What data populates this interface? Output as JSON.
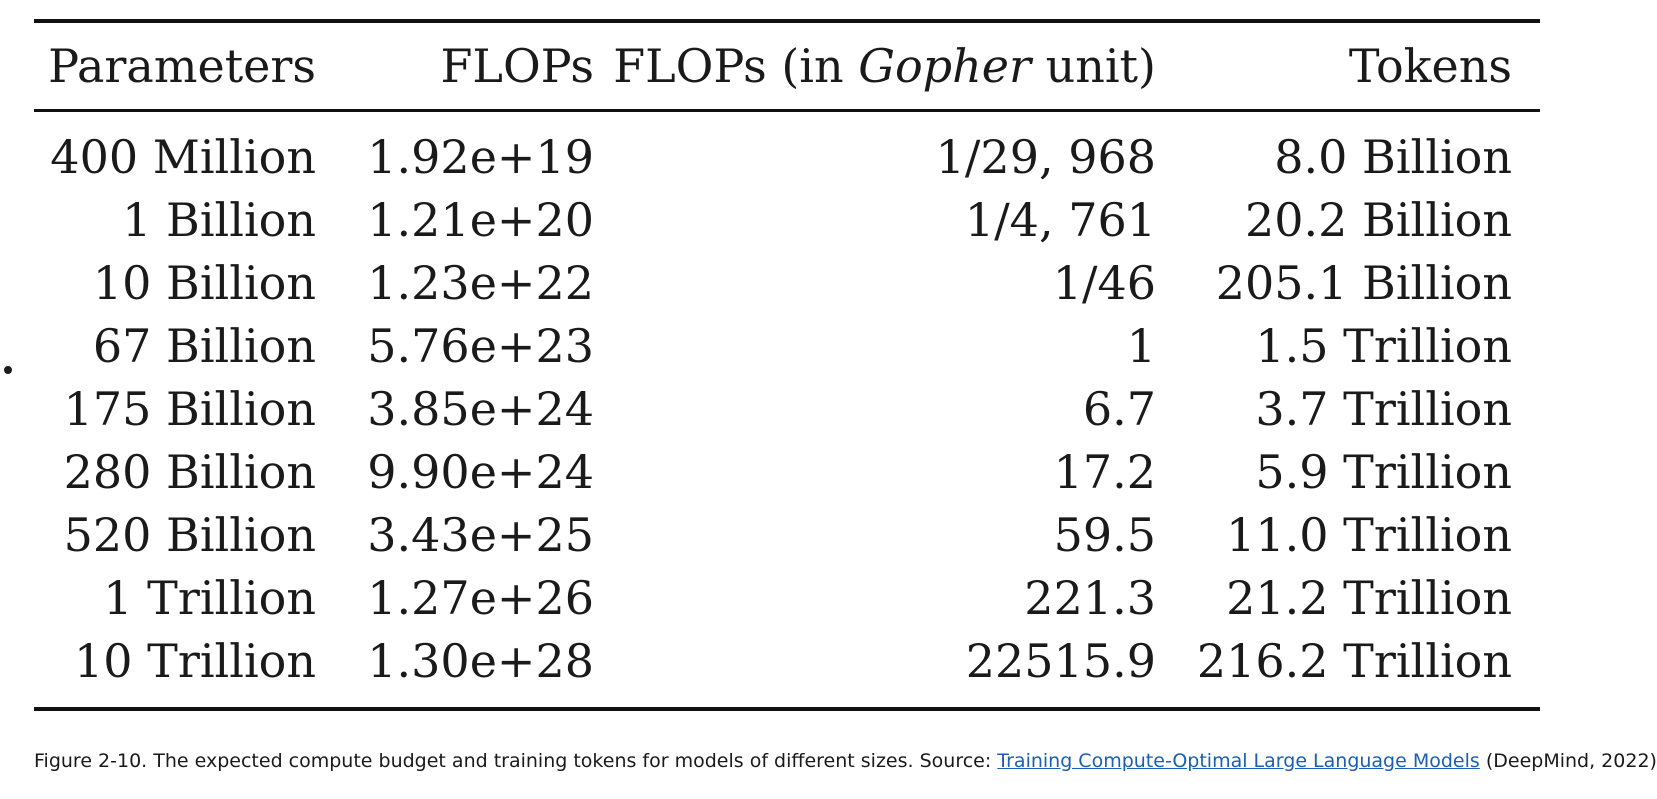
{
  "table": {
    "headers": {
      "parameters": "Parameters",
      "flops": "FLOPs",
      "flops_gopher_prefix": "FLOPs (in ",
      "flops_gopher_italic": "Gopher",
      "flops_gopher_suffix": " unit)",
      "tokens": "Tokens"
    },
    "rows": [
      {
        "parameters": "400 Million",
        "flops": "1.92e+19",
        "gopher": "1/29, 968",
        "tokens": "8.0 Billion"
      },
      {
        "parameters": "1 Billion",
        "flops": "1.21e+20",
        "gopher": "1/4, 761",
        "tokens": "20.2 Billion"
      },
      {
        "parameters": "10 Billion",
        "flops": "1.23e+22",
        "gopher": "1/46",
        "tokens": "205.1 Billion"
      },
      {
        "parameters": "67 Billion",
        "flops": "5.76e+23",
        "gopher": "1",
        "tokens": "1.5 Trillion"
      },
      {
        "parameters": "175 Billion",
        "flops": "3.85e+24",
        "gopher": "6.7",
        "tokens": "3.7 Trillion"
      },
      {
        "parameters": "280 Billion",
        "flops": "9.90e+24",
        "gopher": "17.2",
        "tokens": "5.9 Trillion"
      },
      {
        "parameters": "520 Billion",
        "flops": "3.43e+25",
        "gopher": "59.5",
        "tokens": "11.0 Trillion"
      },
      {
        "parameters": "1 Trillion",
        "flops": "1.27e+26",
        "gopher": "221.3",
        "tokens": "21.2 Trillion"
      },
      {
        "parameters": "10 Trillion",
        "flops": "1.30e+28",
        "gopher": "22515.9",
        "tokens": "216.2 Trillion"
      }
    ]
  },
  "caption": {
    "prefix": "Figure 2-10. The expected compute budget and training tokens for models of different sizes. Source: ",
    "link_text": "Training Compute-Optimal Large Language Models",
    "suffix": " (DeepMind, 2022)"
  }
}
